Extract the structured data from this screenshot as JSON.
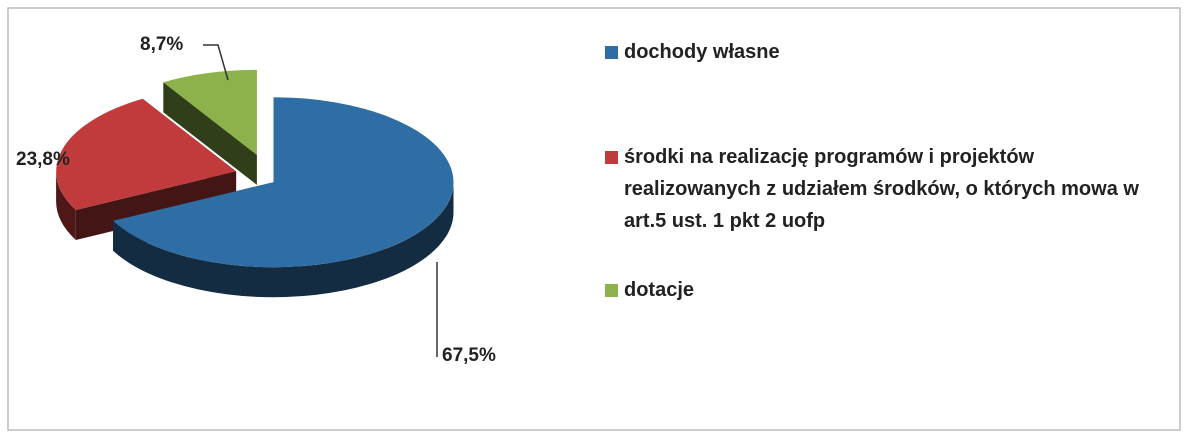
{
  "chart_data": {
    "type": "pie",
    "categories": [
      "dochody własne",
      "środki na realizację programów i projektów realizowanych z udziałem środków, o których mowa w art.5 ust. 1 pkt 2 uofp",
      "dotacje"
    ],
    "values": [
      67.5,
      23.8,
      8.7
    ],
    "value_labels": [
      "67,5%",
      "23,8%",
      "8,7%"
    ],
    "colors": [
      "#2f6ea5",
      "#c23b3c",
      "#8db14b"
    ],
    "legend": "right"
  }
}
